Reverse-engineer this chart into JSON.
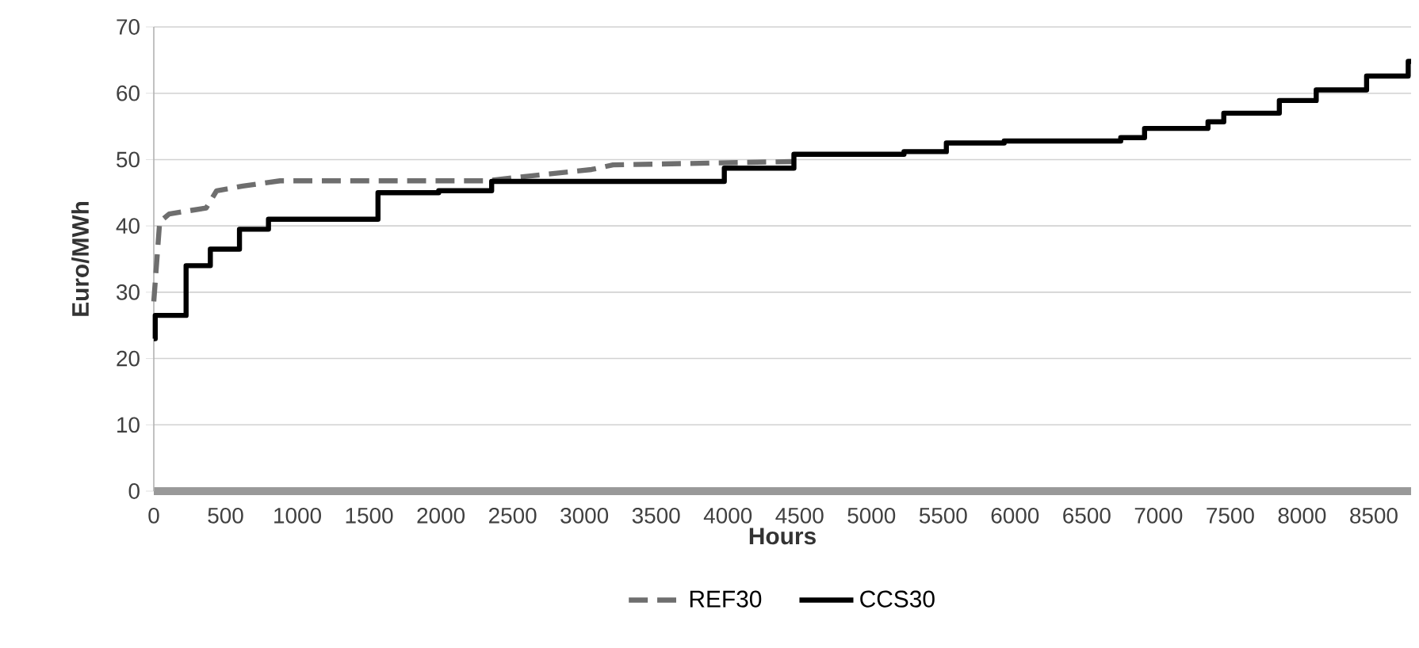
{
  "chart_data": {
    "type": "line",
    "xlabel": "Hours",
    "ylabel": "Euro/MWh",
    "xlim": [
      0,
      8760
    ],
    "xticks": [
      0,
      500,
      1000,
      1500,
      2000,
      2500,
      3000,
      3500,
      4000,
      4500,
      5000,
      5500,
      6000,
      6500,
      7000,
      7500,
      8000,
      8500
    ],
    "ylim": [
      0,
      70
    ],
    "yticks": [
      0,
      10,
      20,
      30,
      40,
      50,
      60,
      70
    ],
    "grid": "y",
    "legend": "bottom",
    "marker": "none",
    "series": [
      {
        "name": "REF30",
        "color": "#6e6e6e",
        "line_style": "dashed",
        "x": [
          0,
          41,
          107,
          365,
          438,
          620,
          880,
          2317,
          2610,
          3050,
          3200,
          4453
        ],
        "values": [
          28.6,
          40.6,
          41.8,
          42.7,
          45.3,
          46.0,
          46.8,
          46.8,
          47.5,
          48.5,
          49.2,
          49.7
        ]
      },
      {
        "name": "CCS30",
        "type": "step",
        "color": "#000000",
        "line_style": "solid",
        "x": [
          0,
          10,
          225,
          394,
          597,
          799,
          1562,
          1985,
          2354,
          3975,
          4460,
          5227,
          5522,
          5925,
          6737,
          6903,
          7345,
          7455,
          7842,
          8099,
          8450,
          8740,
          8760
        ],
        "values": [
          23,
          26.5,
          34,
          36.5,
          39.5,
          41,
          45,
          45.3,
          46.7,
          48.7,
          50.8,
          51.2,
          52.5,
          52.8,
          53.3,
          54.7,
          55.7,
          57,
          58.9,
          60.5,
          62.6,
          64.8,
          64.8
        ]
      }
    ]
  }
}
